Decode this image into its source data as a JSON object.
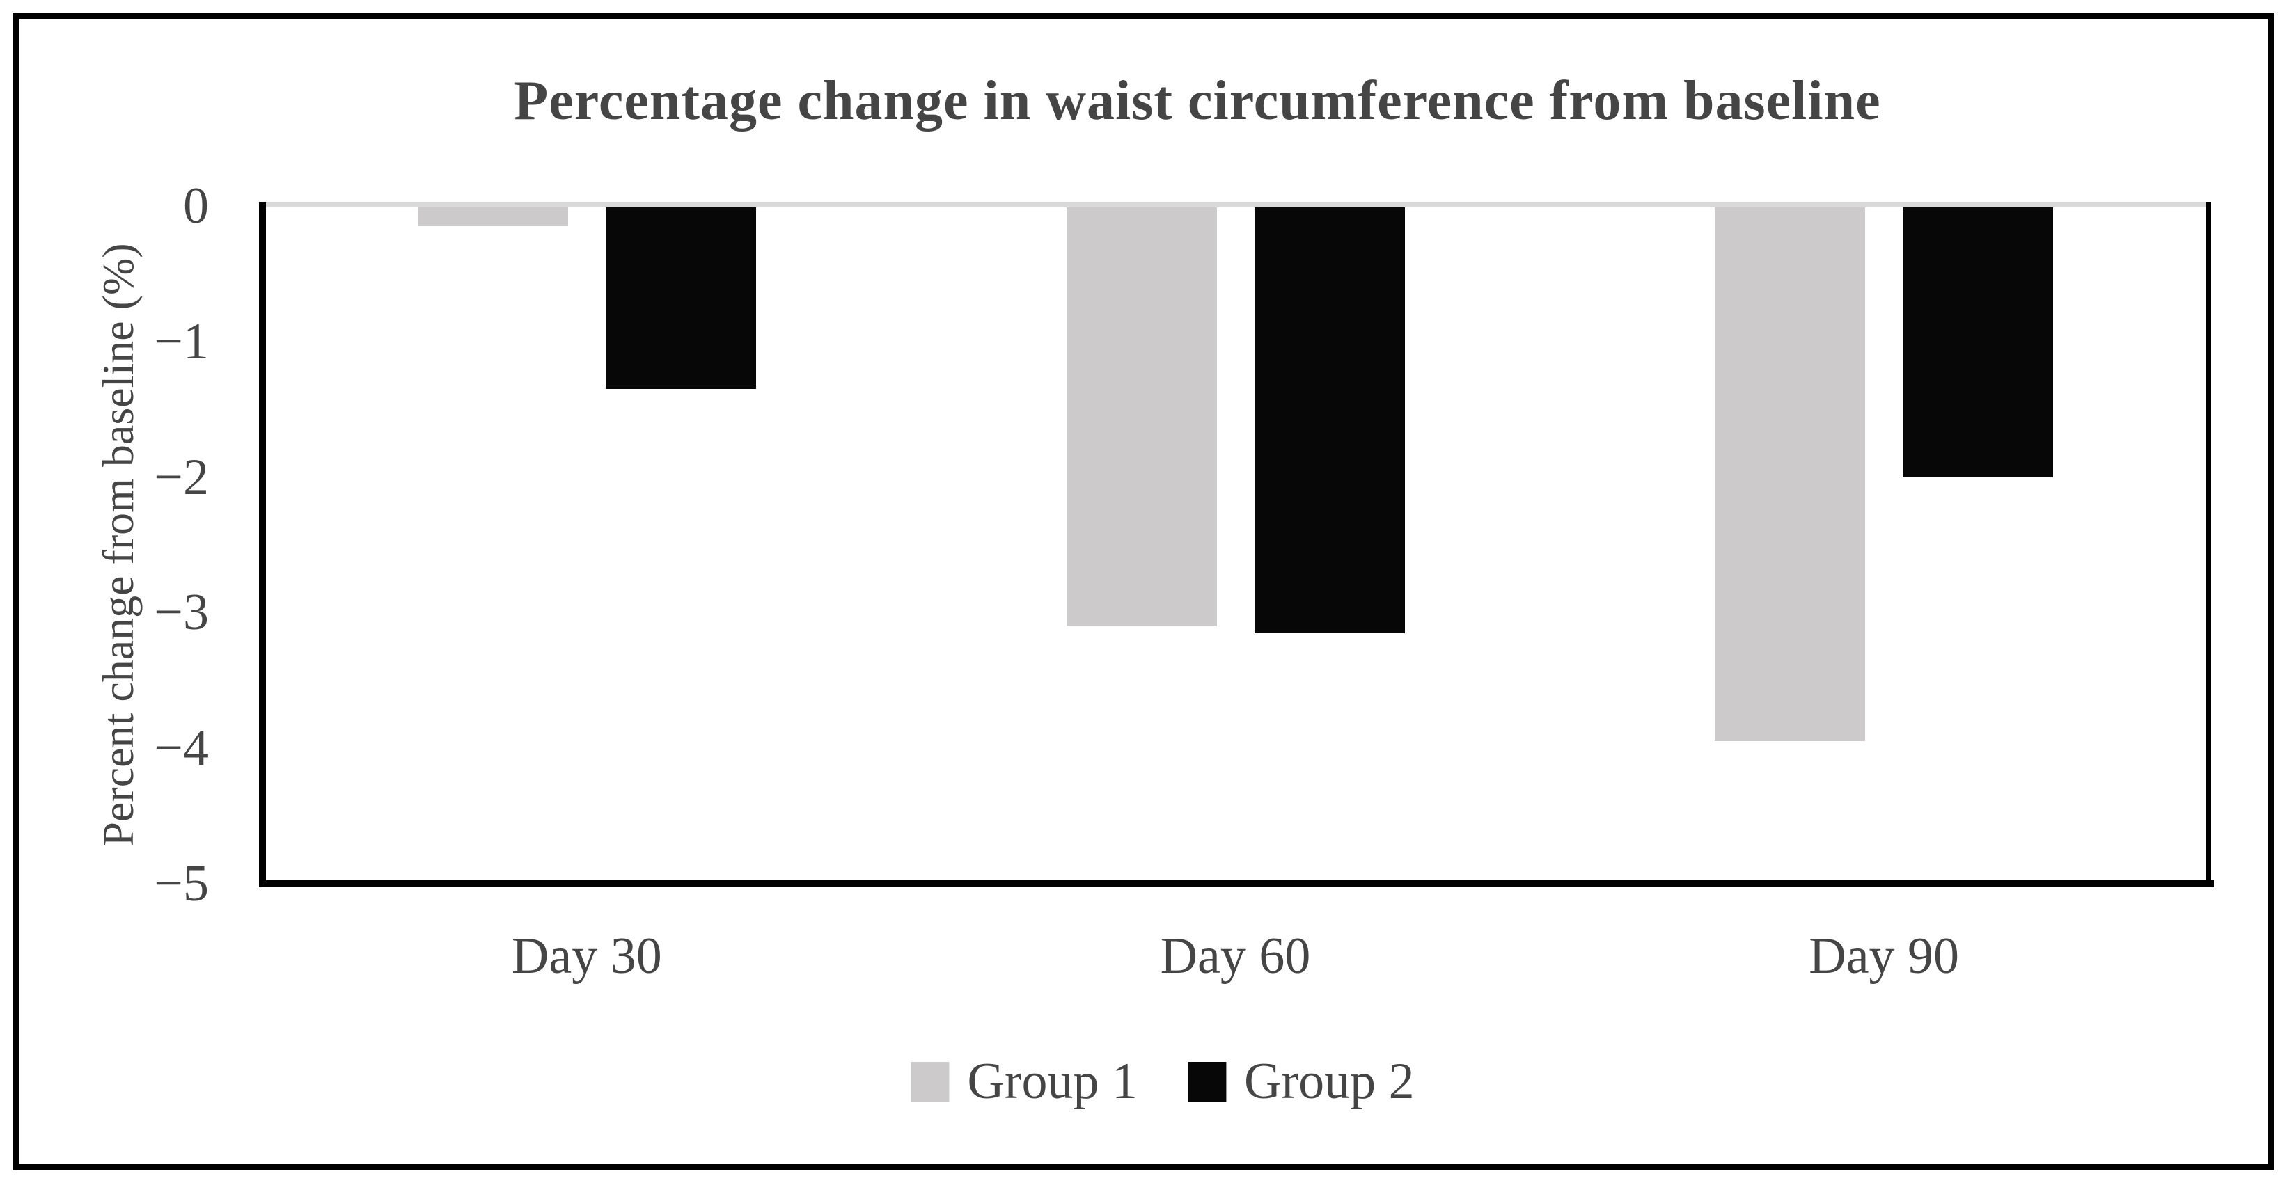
{
  "title": "Percentage change in waist circumference from baseline",
  "chart_data": {
    "type": "bar",
    "title": "Percentage change in waist circumference from baseline",
    "categories": [
      "Day 30",
      "Day 60",
      "Day 90"
    ],
    "series": [
      {
        "name": "Group 1",
        "color": "#cccacb",
        "values": [
          -0.15,
          -3.1,
          -3.95
        ]
      },
      {
        "name": "Group 2",
        "color": "#070707",
        "values": [
          -1.35,
          -3.15,
          -2.0
        ]
      }
    ],
    "xlabel": "",
    "ylabel": "Percent change from baseline (%)",
    "ylim": [
      -5,
      0
    ],
    "yticks": [
      0,
      -1,
      -2,
      -3,
      -4,
      -5
    ],
    "grid": "zero line only",
    "legend_position": "bottom center"
  },
  "colors": {
    "text": "#454545",
    "axis": "#000000",
    "zero_line": "#d9d9d9",
    "frame": "#000000",
    "background": "#ffffff"
  }
}
